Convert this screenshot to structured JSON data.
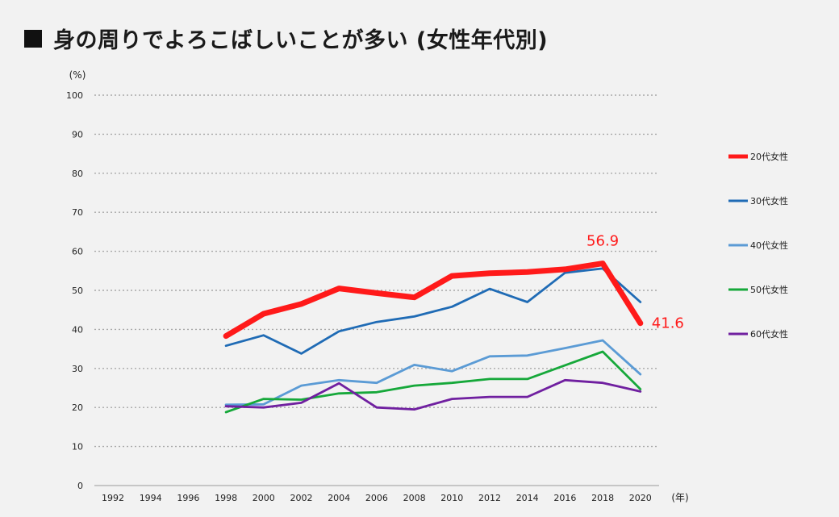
{
  "title": "身の周りでよろこばしいことが多い (女性年代別)",
  "chart_data": {
    "type": "line",
    "title": "身の周りでよろこばしいことが多い (女性年代別)",
    "ylabel": "(%)",
    "xlabel": "(年)",
    "ylim": [
      0,
      100
    ],
    "yticks": [
      0,
      10,
      20,
      30,
      40,
      50,
      60,
      70,
      80,
      90,
      100
    ],
    "categories": [
      "1992",
      "1994",
      "1996",
      "1998",
      "2000",
      "2002",
      "2004",
      "2006",
      "2008",
      "2010",
      "2012",
      "2014",
      "2016",
      "2018",
      "2020"
    ],
    "legend_position": "right",
    "grid": true,
    "series": [
      {
        "name": "20代女性",
        "color": "#ff1a1a",
        "emphasis": true,
        "values": [
          null,
          null,
          null,
          38.3,
          44.0,
          46.5,
          50.5,
          49.3,
          48.2,
          53.7,
          54.4,
          54.7,
          55.4,
          56.9,
          41.6
        ]
      },
      {
        "name": "30代女性",
        "color": "#1f6bb5",
        "values": [
          null,
          null,
          null,
          35.8,
          38.5,
          33.8,
          39.5,
          41.9,
          43.3,
          45.8,
          50.4,
          47.0,
          54.5,
          55.6,
          47.0
        ]
      },
      {
        "name": "40代女性",
        "color": "#5b9bd5",
        "values": [
          null,
          null,
          null,
          20.7,
          20.8,
          25.6,
          27.0,
          26.3,
          30.9,
          29.3,
          33.1,
          33.3,
          35.2,
          37.2,
          28.5
        ]
      },
      {
        "name": "50代女性",
        "color": "#16a83a",
        "values": [
          null,
          null,
          null,
          18.8,
          22.2,
          22.0,
          23.6,
          23.9,
          25.6,
          26.3,
          27.3,
          27.3,
          30.8,
          34.3,
          24.7
        ]
      },
      {
        "name": "60代女性",
        "color": "#7020a0",
        "values": [
          null,
          null,
          null,
          20.3,
          20.0,
          21.2,
          26.2,
          20.0,
          19.5,
          22.2,
          22.7,
          22.7,
          27.0,
          26.3,
          24.1
        ]
      }
    ],
    "annotations": [
      {
        "series": "20代女性",
        "category": "2018",
        "text": "56.9"
      },
      {
        "series": "20代女性",
        "category": "2020",
        "text": "41.6"
      }
    ]
  }
}
